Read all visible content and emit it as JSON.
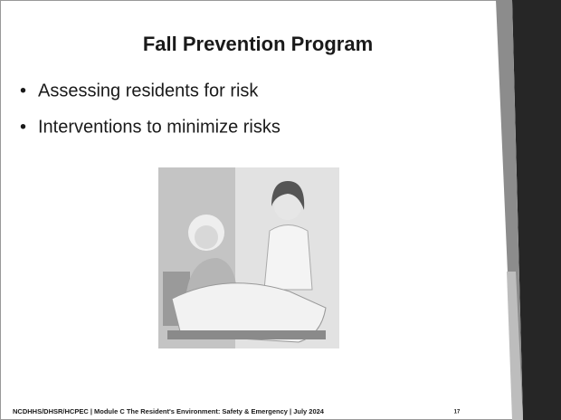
{
  "slide": {
    "title": "Fall Prevention Program",
    "bullets": [
      "Assessing residents for risk",
      "Interventions to minimize risks"
    ],
    "footer": "NCDHHS/DHSR/HCPEC | Module C The Resident's Environment: Safety & Emergency | July 2024",
    "page_number": "17"
  }
}
